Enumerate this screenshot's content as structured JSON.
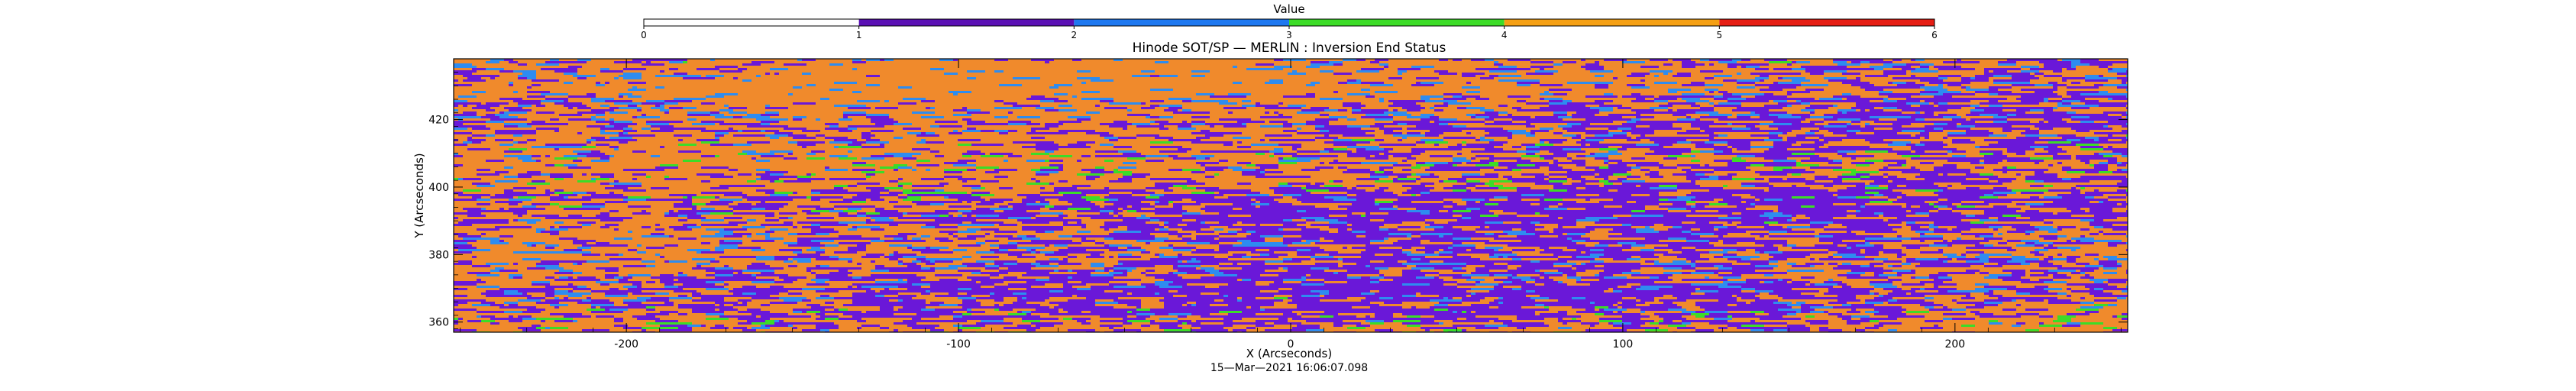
{
  "chart_data": {
    "type": "heatmap",
    "title": "Hinode SOT/SP — MERLIN : Inversion End Status",
    "xlabel": "X (Arcseconds)",
    "ylabel": "Y (Arcseconds)",
    "footer": "15—Mar—2021 16:06:07.098",
    "xlim": [
      -252,
      252
    ],
    "ylim": [
      357,
      438
    ],
    "x_ticks": [
      -200,
      -100,
      0,
      100,
      200
    ],
    "y_ticks": [
      360,
      380,
      400,
      420
    ],
    "grid": false,
    "colorbar": {
      "title": "Value",
      "placement": "top",
      "range": [
        0,
        6
      ],
      "ticks": [
        0,
        1,
        2,
        3,
        4,
        5,
        6
      ],
      "segments": [
        {
          "from": 0,
          "to": 1,
          "color": "#ffffff"
        },
        {
          "from": 1,
          "to": 2,
          "color": "#5a0fb4"
        },
        {
          "from": 2,
          "to": 3,
          "color": "#1e78f0"
        },
        {
          "from": 3,
          "to": 4,
          "color": "#3cdc28"
        },
        {
          "from": 4,
          "to": 5,
          "color": "#f5a014"
        },
        {
          "from": 5,
          "to": 6,
          "color": "#e61e14"
        }
      ]
    },
    "value_fractions": [
      {
        "value": 1,
        "color": "#6a18d8",
        "fraction": 0.47
      },
      {
        "value": 4,
        "color": "#f08a2c",
        "fraction": 0.43
      },
      {
        "value": 2,
        "color": "#2e8cf0",
        "fraction": 0.09
      },
      {
        "value": 3,
        "color": "#3cdc28",
        "fraction": 0.01
      }
    ]
  }
}
